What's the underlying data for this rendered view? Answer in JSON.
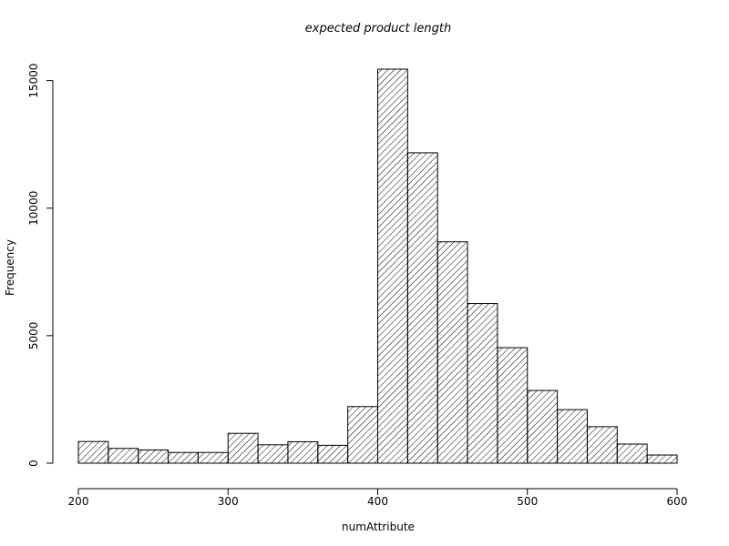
{
  "chart_data": {
    "type": "bar",
    "subtype": "histogram",
    "title": "expected product length",
    "xlabel": "numAttribute",
    "ylabel": "Frequency",
    "bin_width": 20,
    "bins": [
      {
        "start": 200,
        "end": 220,
        "count": 850
      },
      {
        "start": 220,
        "end": 240,
        "count": 580
      },
      {
        "start": 240,
        "end": 260,
        "count": 520
      },
      {
        "start": 260,
        "end": 280,
        "count": 420
      },
      {
        "start": 280,
        "end": 300,
        "count": 420
      },
      {
        "start": 300,
        "end": 320,
        "count": 1170
      },
      {
        "start": 320,
        "end": 340,
        "count": 720
      },
      {
        "start": 340,
        "end": 360,
        "count": 840
      },
      {
        "start": 360,
        "end": 380,
        "count": 700
      },
      {
        "start": 380,
        "end": 400,
        "count": 2220
      },
      {
        "start": 400,
        "end": 420,
        "count": 15450
      },
      {
        "start": 420,
        "end": 440,
        "count": 12170
      },
      {
        "start": 440,
        "end": 460,
        "count": 8680
      },
      {
        "start": 460,
        "end": 480,
        "count": 6260
      },
      {
        "start": 480,
        "end": 500,
        "count": 4530
      },
      {
        "start": 500,
        "end": 520,
        "count": 2850
      },
      {
        "start": 520,
        "end": 540,
        "count": 2100
      },
      {
        "start": 540,
        "end": 560,
        "count": 1430
      },
      {
        "start": 560,
        "end": 580,
        "count": 750
      },
      {
        "start": 580,
        "end": 600,
        "count": 320
      }
    ],
    "xlim": [
      200,
      600
    ],
    "ylim": [
      0,
      15450
    ],
    "x_ticks": [
      200,
      300,
      400,
      500,
      600
    ],
    "x_tick_labels": [
      "200",
      "300",
      "400",
      "500",
      "600"
    ],
    "y_ticks": [
      0,
      5000,
      10000,
      15000
    ],
    "y_tick_labels": [
      "0",
      "5000",
      "10000",
      "15000"
    ],
    "bar_fill": "diagonal-hatch",
    "bar_color": "#000000",
    "background": "#ffffff",
    "grid": false,
    "legend": "none"
  }
}
